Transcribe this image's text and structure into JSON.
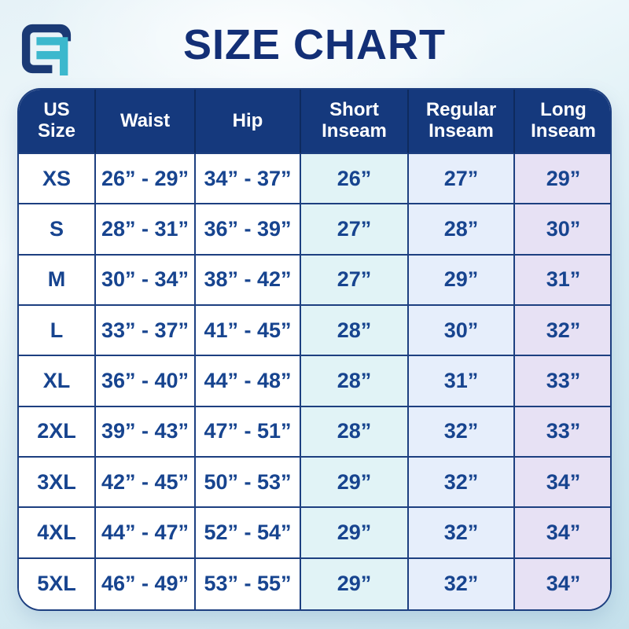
{
  "title": "SIZE CHART",
  "logo": {
    "name": "brand-logo",
    "navy": "#1b3a75",
    "teal": "#3cb8cd"
  },
  "colors": {
    "header_bg": "#15397d",
    "header_text": "#ffffff",
    "body_text": "#17448f",
    "grid_line": "#1d3f80",
    "title": "#132f76",
    "short_inseam_col": "#e1f3f6",
    "regular_inseam_col": "#e6eefb",
    "long_inseam_col": "#e7e1f4",
    "background_top": "#eff8fb",
    "background_bottom": "#c5e1ec"
  },
  "table": {
    "columns": [
      {
        "id": "size",
        "label": "US\nSize"
      },
      {
        "id": "waist",
        "label": "Waist"
      },
      {
        "id": "hip",
        "label": "Hip"
      },
      {
        "id": "short",
        "label": "Short\nInseam"
      },
      {
        "id": "regular",
        "label": "Regular\nInseam"
      },
      {
        "id": "long",
        "label": "Long\nInseam"
      }
    ],
    "rows": [
      {
        "size": "XS",
        "waist": "26” - 29”",
        "hip": "34” - 37”",
        "short": "26”",
        "regular": "27”",
        "long": "29”"
      },
      {
        "size": "S",
        "waist": "28” - 31”",
        "hip": "36” - 39”",
        "short": "27”",
        "regular": "28”",
        "long": "30”"
      },
      {
        "size": "M",
        "waist": "30” - 34”",
        "hip": "38” - 42”",
        "short": "27”",
        "regular": "29”",
        "long": "31”"
      },
      {
        "size": "L",
        "waist": "33” - 37”",
        "hip": "41” - 45”",
        "short": "28”",
        "regular": "30”",
        "long": "32”"
      },
      {
        "size": "XL",
        "waist": "36” - 40”",
        "hip": "44” - 48”",
        "short": "28”",
        "regular": "31”",
        "long": "33”"
      },
      {
        "size": "2XL",
        "waist": "39” - 43”",
        "hip": "47” - 51”",
        "short": "28”",
        "regular": "32”",
        "long": "33”"
      },
      {
        "size": "3XL",
        "waist": "42” - 45”",
        "hip": "50” - 53”",
        "short": "29”",
        "regular": "32”",
        "long": "34”"
      },
      {
        "size": "4XL",
        "waist": "44” - 47”",
        "hip": "52” - 54”",
        "short": "29”",
        "regular": "32”",
        "long": "34”"
      },
      {
        "size": "5XL",
        "waist": "46” - 49”",
        "hip": "53” - 55”",
        "short": "29”",
        "regular": "32”",
        "long": "34”"
      }
    ]
  },
  "chart_data": {
    "type": "table",
    "title": "SIZE CHART",
    "columns": [
      "US Size",
      "Waist",
      "Hip",
      "Short Inseam",
      "Regular Inseam",
      "Long Inseam"
    ],
    "rows": [
      [
        "XS",
        "26” - 29”",
        "34” - 37”",
        "26”",
        "27”",
        "29”"
      ],
      [
        "S",
        "28” - 31”",
        "36” - 39”",
        "27”",
        "28”",
        "30”"
      ],
      [
        "M",
        "30” - 34”",
        "38” - 42”",
        "27”",
        "29”",
        "31”"
      ],
      [
        "L",
        "33” - 37”",
        "41” - 45”",
        "28”",
        "30”",
        "32”"
      ],
      [
        "XL",
        "36” - 40”",
        "44” - 48”",
        "28”",
        "31”",
        "33”"
      ],
      [
        "2XL",
        "39” - 43”",
        "47” - 51”",
        "28”",
        "32”",
        "33”"
      ],
      [
        "3XL",
        "42” - 45”",
        "50” - 53”",
        "29”",
        "32”",
        "34”"
      ],
      [
        "4XL",
        "44” - 47”",
        "52” - 54”",
        "29”",
        "32”",
        "34”"
      ],
      [
        "5XL",
        "46” - 49”",
        "53” - 55”",
        "29”",
        "32”",
        "34”"
      ]
    ]
  }
}
